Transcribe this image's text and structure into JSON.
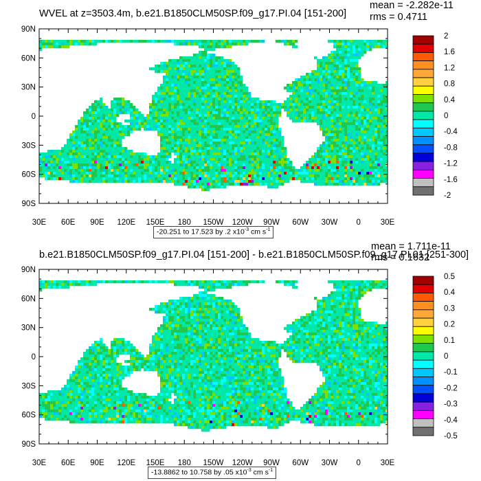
{
  "chart_data": [
    {
      "type": "heatmap",
      "title": "WVEL at z=3503.4m, b.e21.B1850CLM50SP.f09_g17.PI.04 [151-200]",
      "mean_text": "mean = -2.282e-11",
      "rms_text": "rms = 0.4711",
      "range_text": "-20.251 to 17.523 by .2 x10",
      "range_exp": "-3",
      "range_units": " cm s",
      "range_units_exp": "-1",
      "x_ticks": [
        "30E",
        "60E",
        "90E",
        "120E",
        "150E",
        "180",
        "150W",
        "120W",
        "90W",
        "60W",
        "30W",
        "0",
        "30E"
      ],
      "y_ticks": [
        "90N",
        "60N",
        "30N",
        "0",
        "30S",
        "60S",
        "90S"
      ],
      "colorbar_labels": [
        "2",
        "1.6",
        "1.2",
        "0.8",
        "0.4",
        "0",
        "-0.4",
        "-0.8",
        "-1.2",
        "-1.6",
        "-2"
      ],
      "colorbar_colors": [
        "#a00000",
        "#e00000",
        "#ff5a00",
        "#ff8f20",
        "#ffa838",
        "#ffd040",
        "#ffff00",
        "#7de000",
        "#20c850",
        "#00e8a8",
        "#00ffff",
        "#00c8ff",
        "#0090ff",
        "#0050ff",
        "#0000d8",
        "#8820e0",
        "#ff00ff",
        "#c0c0c0",
        "#707070"
      ],
      "field_colors": [
        "#00e8a8",
        "#20c850",
        "#7de000",
        "#00ffff",
        "#00c8ff"
      ]
    },
    {
      "type": "heatmap",
      "title": "b.e21.B1850CLM50SP.f09_g17.PI.04 [151-200] - b.e21.B1850CLM50SP.f09_g17.PI.01 [251-300]",
      "mean_text": "mean = 1.711e-11",
      "rms_text": "rms = 0.1632",
      "range_text": "-13.8862 to 10.758 by .05 x10",
      "range_exp": "-3",
      "range_units": " cm s",
      "range_units_exp": "-1",
      "x_ticks": [
        "30E",
        "60E",
        "90E",
        "120E",
        "150E",
        "180",
        "150W",
        "120W",
        "90W",
        "60W",
        "30W",
        "0",
        "30E"
      ],
      "y_ticks": [
        "90N",
        "60N",
        "30N",
        "0",
        "30S",
        "60S",
        "90S"
      ],
      "colorbar_labels": [
        "0.5",
        "0.4",
        "0.3",
        "0.2",
        "0.1",
        "0",
        "-0.1",
        "-0.2",
        "-0.3",
        "-0.4",
        "-0.5"
      ],
      "colorbar_colors": [
        "#a00000",
        "#e00000",
        "#ff5a00",
        "#ff8f20",
        "#ffa838",
        "#ffd040",
        "#ffff00",
        "#7de000",
        "#20c850",
        "#00e8a8",
        "#00ffff",
        "#00c8ff",
        "#0090ff",
        "#0050ff",
        "#0000d8",
        "#8820e0",
        "#ff00ff",
        "#c0c0c0",
        "#707070"
      ],
      "field_colors": [
        "#00e8a8",
        "#20c850",
        "#00ffff",
        "#7de000",
        "#00c8ff"
      ]
    }
  ]
}
